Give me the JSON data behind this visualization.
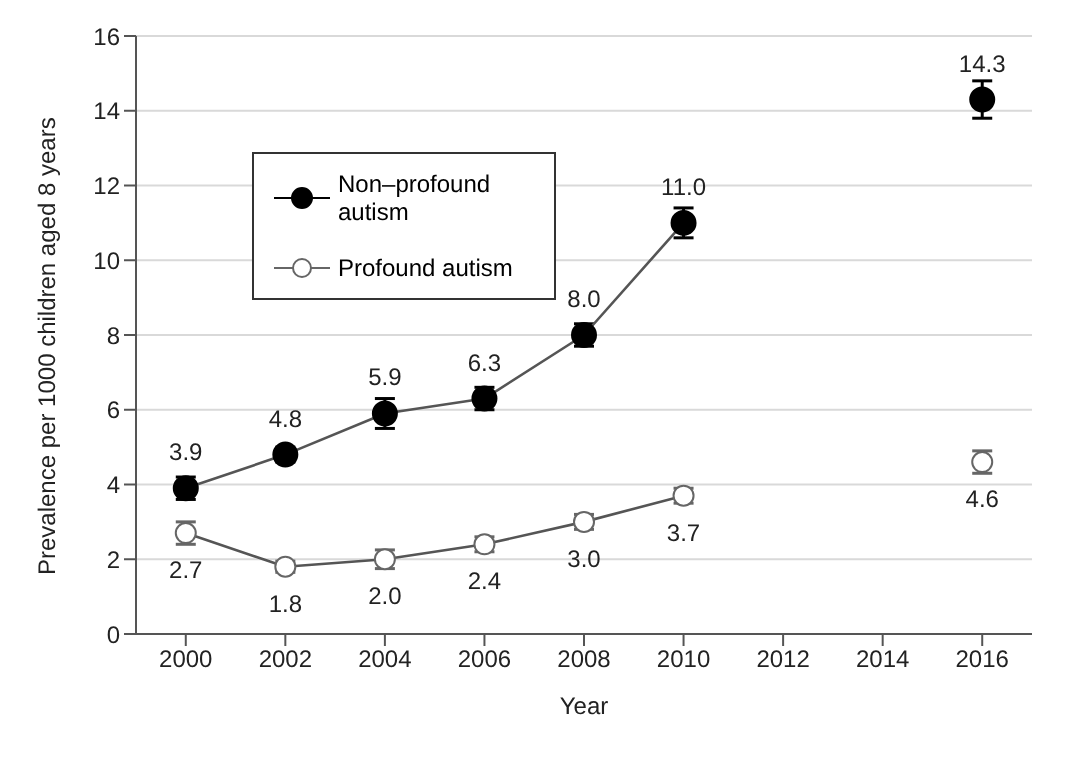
{
  "chart_data": {
    "type": "line",
    "xlabel": "Year",
    "ylabel": "Prevalence per 1000 children aged 8 years",
    "x": [
      2000,
      2002,
      2004,
      2006,
      2008,
      2010,
      2012,
      2014,
      2016
    ],
    "series": [
      {
        "name": "Non–profound autism",
        "color": "#000000",
        "values": [
          3.9,
          4.8,
          5.9,
          6.3,
          8.0,
          11.0,
          null,
          null,
          14.3
        ],
        "errors": [
          0.3,
          0.2,
          0.4,
          0.3,
          0.3,
          0.4,
          null,
          null,
          0.5
        ],
        "value_labels": [
          "3.9",
          "4.8",
          "5.9",
          "6.3",
          "8.0",
          "11.0",
          null,
          null,
          "14.3"
        ]
      },
      {
        "name": "Profound autism",
        "color": "#666666",
        "values": [
          2.7,
          1.8,
          2.0,
          2.4,
          3.0,
          3.7,
          null,
          null,
          4.6
        ],
        "errors": [
          0.3,
          0.15,
          0.25,
          0.2,
          0.2,
          0.2,
          null,
          null,
          0.3
        ],
        "value_labels": [
          "2.7",
          "1.8",
          "2.0",
          "2.4",
          "3.0",
          "3.7",
          null,
          null,
          "4.6"
        ]
      }
    ],
    "xlim": [
      1999,
      2017
    ],
    "xticks": [
      2000,
      2002,
      2004,
      2006,
      2008,
      2010,
      2012,
      2014,
      2016
    ],
    "ylim": [
      0,
      16
    ],
    "yticks": [
      0,
      2,
      4,
      6,
      8,
      10,
      12,
      14,
      16
    ],
    "grid": "y",
    "legend": "top left",
    "marker": "circle",
    "line_style": "solid"
  }
}
